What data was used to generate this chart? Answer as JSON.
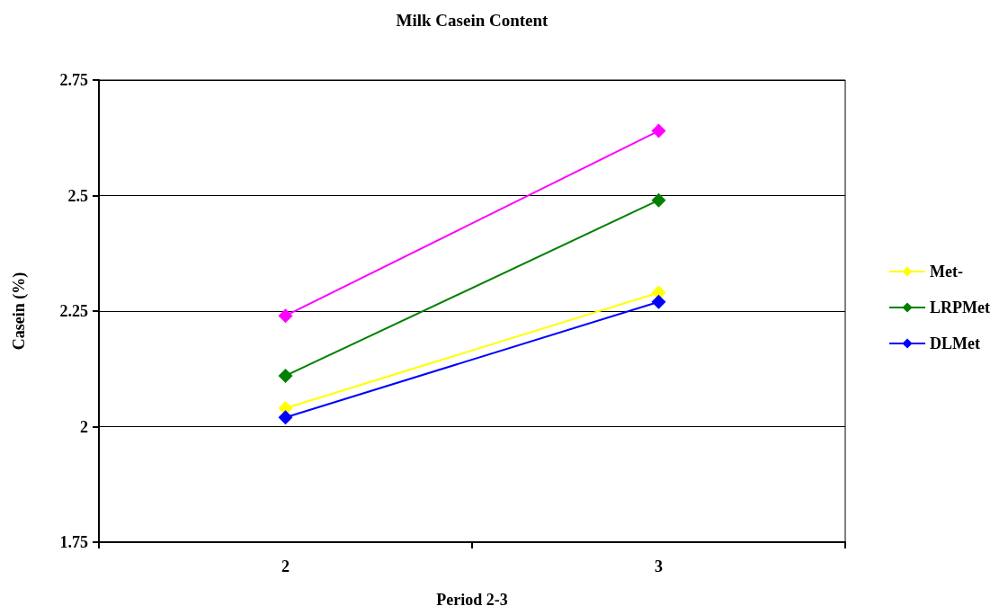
{
  "chart_data": {
    "type": "line",
    "title": "Milk Casein Content",
    "xlabel": "Period 2-3",
    "ylabel": "Casein (%)",
    "categories": [
      "2",
      "3"
    ],
    "series": [
      {
        "name": "Met-",
        "color": "#ffff00",
        "values": [
          2.04,
          2.29
        ]
      },
      {
        "name": "LRPMet",
        "color": "#008000",
        "values": [
          2.11,
          2.49
        ]
      },
      {
        "name": "DLMet",
        "color": "#0000ff",
        "values": [
          2.02,
          2.27
        ]
      },
      {
        "color": "#ff00ff",
        "values": [
          2.24,
          2.64
        ]
      }
    ],
    "ylim": [
      1.75,
      2.75
    ],
    "yticks": [
      1.75,
      2,
      2.25,
      2.5,
      2.75
    ],
    "grid": "y",
    "legend": "right",
    "marker": "diamond",
    "line_style": "solid"
  }
}
